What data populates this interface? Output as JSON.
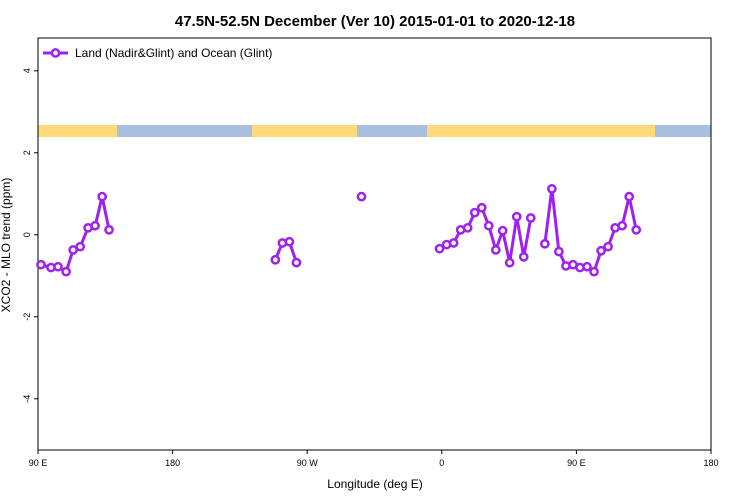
{
  "chart_data": {
    "type": "line",
    "title": "47.5N-52.5N December (Ver 10)   2015-01-01 to 2020-12-18",
    "x_label": "Longitude (deg E)",
    "y_label": "XCO2 - MLO trend (ppm)",
    "xlim": [
      90,
      540
    ],
    "ylim": [
      -5.25,
      4.8
    ],
    "xticks": [
      {
        "value": 90,
        "label": "90 E"
      },
      180,
      {
        "value": 270,
        "label": "90 W"
      },
      {
        "value": 360,
        "label": "0"
      },
      {
        "value": 450,
        "label": "90 E"
      },
      {
        "value": 540,
        "label": "180"
      }
    ],
    "yticks": [
      -4,
      -2,
      0,
      2,
      4
    ],
    "legend": "top-left",
    "series": [
      {
        "name": "Land (Nadir&Glint) and Ocean (Glint)",
        "color": "#a020f0",
        "x": [
          92,
          98.7,
          103.4,
          108.8,
          113.5,
          118.2,
          123.5,
          128.2,
          132.9,
          137.5,
          142.2,
          248.7,
          253.4,
          258.1,
          262.8,
          267.5,
          306.3,
          311,
          358.5,
          363.2,
          367.9,
          372.6,
          377.3,
          382,
          386.7,
          391.4,
          396.1,
          400.7,
          405.4,
          410.1,
          414.8,
          419.5,
          424.2,
          428.9,
          433.6,
          438.3,
          443,
          447.7,
          452.4,
          457.1,
          461.8,
          466.5,
          471.2,
          475.9,
          480.6,
          485.3,
          490
        ],
        "values": [
          -0.73,
          -0.8,
          -0.78,
          -0.9,
          -0.37,
          -0.29,
          0.17,
          0.22,
          0.93,
          0.12,
          null,
          -0.61,
          -0.2,
          -0.17,
          -0.68,
          null,
          0.93,
          null,
          -0.34,
          -0.24,
          -0.2,
          0.12,
          0.17,
          0.54,
          0.66,
          0.22,
          -0.37,
          0.1,
          -0.68,
          0.44,
          -0.54,
          0.41,
          null,
          -0.22,
          1.12,
          -0.41,
          -0.76,
          -0.73,
          -0.8,
          -0.78,
          -0.9,
          -0.39,
          -0.29,
          0.17,
          0.22,
          0.93,
          0.12
        ]
      }
    ]
  }
}
